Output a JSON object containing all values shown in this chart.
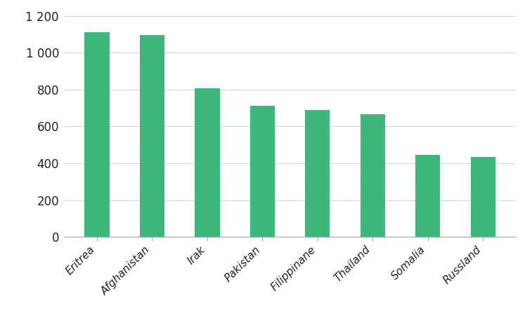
{
  "categories": [
    "Eritrea",
    "Afghanistan",
    "Irak",
    "Pakistan",
    "Filippinane",
    "Thailand",
    "Somalia",
    "Russland"
  ],
  "values": [
    1110,
    1095,
    805,
    710,
    690,
    665,
    445,
    435
  ],
  "bar_color": "#3db87a",
  "ylim": [
    0,
    1200
  ],
  "yticks": [
    0,
    200,
    400,
    600,
    800,
    1000,
    1200
  ],
  "ytick_labels": [
    "0",
    "200",
    "400",
    "600",
    "800",
    "1 000",
    "1 200"
  ],
  "background_color": "#ffffff",
  "bar_width": 0.45,
  "figsize": [
    7.57,
    4.51
  ],
  "dpi": 100
}
